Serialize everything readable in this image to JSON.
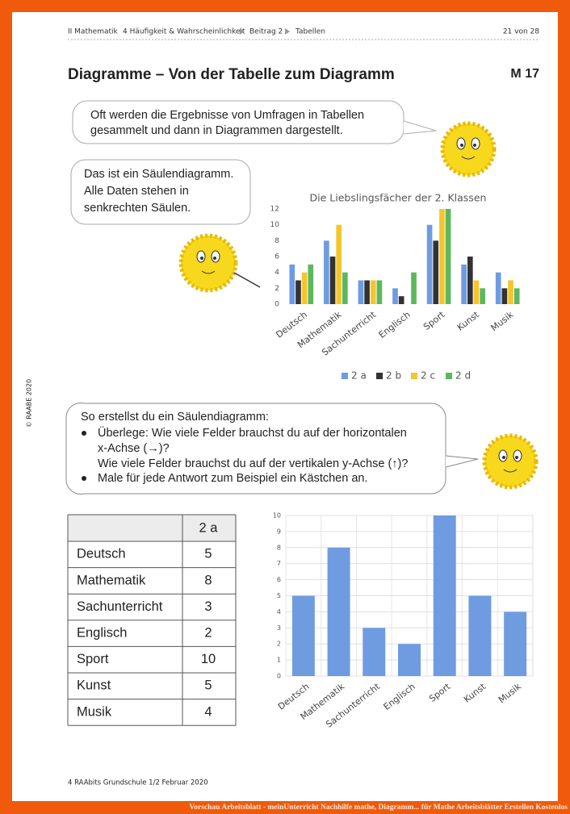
{
  "header": {
    "breadcrumb": [
      "II Mathematik",
      "4 Häufigkeit & Wahrscheinlichkeit",
      "Beitrag 2",
      "Tabellen"
    ],
    "page": "21 von 28"
  },
  "title": "Diagramme – Von der Tabelle zum Diagramm",
  "code": "M 17",
  "bubbles": [
    {
      "lines": [
        "Oft werden die Ergebnisse von Umfragen in Tabellen",
        "gesammelt und dann in Diagrammen dargestellt."
      ]
    },
    {
      "lines": [
        "Das ist ein Säulendiagramm.",
        "Alle Daten stehen in",
        "senkrechten Säulen."
      ]
    },
    {
      "lines": [
        "So erstellst du ein Säulendiagramm:",
        "Überlege: Wie viele Felder brauchst du auf der horizontalen",
        "x-Achse (→)?",
        "Wie viele Felder brauchst du auf der vertikalen y-Achse (↑)?",
        "Male für jede Antwort zum Beispiel ein Kästchen an."
      ]
    }
  ],
  "chart_data": [
    {
      "type": "bar",
      "title": "Die Liebslingsfächer der 2. Klassen",
      "categories": [
        "Deutsch",
        "Mathematik",
        "Sachunterricht",
        "Englisch",
        "Sport",
        "Kunst",
        "Musik"
      ],
      "series": [
        {
          "name": "2 a",
          "color": "#6f9be0",
          "values": [
            5,
            8,
            3,
            2,
            10,
            5,
            4
          ]
        },
        {
          "name": "2 b",
          "color": "#333333",
          "values": [
            3,
            6,
            3,
            1,
            8,
            6,
            2
          ]
        },
        {
          "name": "2 c",
          "color": "#f5c52e",
          "values": [
            4,
            10,
            3,
            0,
            12,
            3,
            3
          ]
        },
        {
          "name": "2 d",
          "color": "#5cb85c",
          "values": [
            5,
            4,
            3,
            4,
            12,
            2,
            2
          ]
        }
      ],
      "ylim": [
        0,
        12
      ],
      "yticks": [
        0,
        2,
        4,
        6,
        8,
        10,
        12
      ],
      "grid": false,
      "legend": "bottom"
    },
    {
      "type": "bar",
      "categories": [
        "Deutsch",
        "Mathematik",
        "Sachunterricht",
        "Englisch",
        "Sport",
        "Kunst",
        "Musik"
      ],
      "values": [
        5,
        8,
        3,
        2,
        10,
        5,
        4
      ],
      "color": "#6f9be0",
      "ylim": [
        0,
        10
      ],
      "yticks": [
        0,
        1,
        2,
        3,
        4,
        5,
        6,
        7,
        8,
        9,
        10
      ],
      "grid": true
    }
  ],
  "table": {
    "column_header": "2 a"
  },
  "copyright": "© RAABE 2020",
  "footer": "4 RAAbits Grundschule 1/2 Februar 2020",
  "caption": "Vorschau Arbeitsblatt - meinUnterricht Nachhilfe mathe, Diagramm... für Mathe Arbeitsblätter Erstellen Kostenlos"
}
